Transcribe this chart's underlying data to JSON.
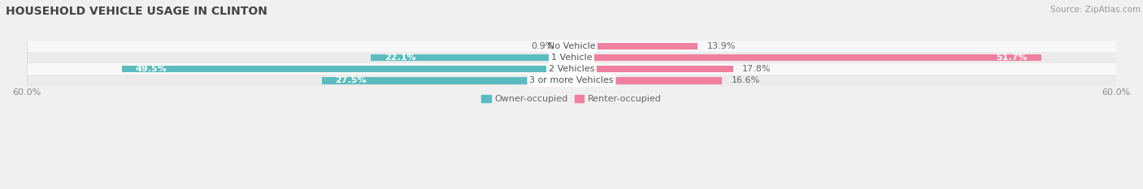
{
  "title": "HOUSEHOLD VEHICLE USAGE IN CLINTON",
  "source": "Source: ZipAtlas.com",
  "categories": [
    "No Vehicle",
    "1 Vehicle",
    "2 Vehicles",
    "3 or more Vehicles"
  ],
  "owner_values": [
    0.9,
    22.1,
    49.5,
    27.5
  ],
  "renter_values": [
    13.9,
    51.7,
    17.8,
    16.6
  ],
  "owner_color": "#5bbcbf",
  "renter_color": "#f080a0",
  "owner_label": "Owner-occupied",
  "renter_label": "Renter-occupied",
  "axis_max": 60.0,
  "axis_label_left": "60.0%",
  "axis_label_right": "60.0%",
  "title_fontsize": 10,
  "source_fontsize": 7.5,
  "bar_height": 0.62,
  "background_color": "#f0f0f0",
  "row_colors": [
    "#f8f8f8",
    "#ebebeb",
    "#f8f8f8",
    "#ebebeb"
  ],
  "label_fontsize": 8,
  "category_fontsize": 8
}
